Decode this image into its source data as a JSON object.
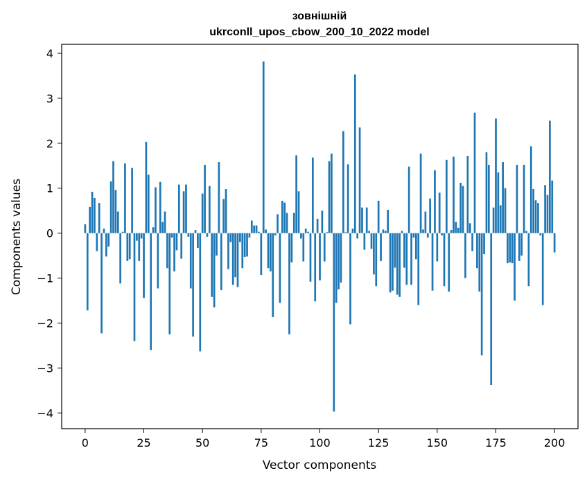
{
  "chart_data": {
    "type": "bar",
    "title_line1": "зовнішній",
    "title_line2": "ukrconll_upos_cbow_200_10_2022 model",
    "xlabel": "Vector components",
    "ylabel": "Components values",
    "xlim": [
      -10,
      210
    ],
    "ylim": [
      -4.35,
      4.2
    ],
    "xticks": [
      0,
      25,
      50,
      75,
      100,
      125,
      150,
      175,
      200
    ],
    "yticks": [
      -4,
      -3,
      -2,
      -1,
      0,
      1,
      2,
      3,
      4
    ],
    "xtick_labels": [
      "0",
      "25",
      "50",
      "75",
      "100",
      "125",
      "150",
      "175",
      "200"
    ],
    "ytick_labels": [
      "−4",
      "−3",
      "−2",
      "−1",
      "0",
      "1",
      "2",
      "3",
      "4"
    ],
    "bar_color": "#1f77b4",
    "grid": false,
    "values": [
      0.2,
      -1.72,
      0.58,
      0.92,
      0.78,
      -0.4,
      0.67,
      -2.23,
      0.1,
      -0.52,
      -0.3,
      1.15,
      1.6,
      0.96,
      0.48,
      -1.12,
      0.03,
      1.55,
      -0.62,
      -0.58,
      1.45,
      -2.4,
      -0.17,
      -0.62,
      -0.12,
      -1.44,
      2.03,
      1.3,
      -2.6,
      0.13,
      1.02,
      -1.23,
      1.14,
      0.25,
      0.48,
      -0.78,
      -2.25,
      -0.1,
      -0.85,
      -0.38,
      1.08,
      -0.57,
      0.93,
      1.08,
      -0.08,
      -1.23,
      -2.3,
      0.07,
      -0.33,
      -2.63,
      0.88,
      1.52,
      -0.08,
      1.05,
      -1.42,
      -1.65,
      -0.5,
      1.58,
      -1.27,
      0.76,
      0.98,
      -0.8,
      -0.2,
      -1.15,
      -0.98,
      -1.2,
      -0.2,
      -0.78,
      -0.53,
      -0.52,
      -0.1,
      0.28,
      0.17,
      0.17,
      0.03,
      -0.93,
      3.82,
      0.08,
      -0.78,
      -0.85,
      -1.87,
      -0.05,
      0.42,
      -1.55,
      0.72,
      0.68,
      0.45,
      -2.25,
      -0.65,
      0.45,
      1.73,
      0.93,
      -0.12,
      -0.63,
      0.1,
      0.03,
      -1.08,
      1.68,
      -1.52,
      0.32,
      -1.05,
      0.5,
      -0.63,
      0.02,
      1.6,
      1.77,
      -3.97,
      -1.55,
      -1.25,
      -1.1,
      2.27,
      0.02,
      1.53,
      -2.03,
      0.1,
      3.53,
      -0.12,
      2.35,
      0.57,
      -0.37,
      0.57,
      0.05,
      -0.35,
      -0.92,
      -1.18,
      0.72,
      -0.62,
      0.08,
      0.05,
      0.52,
      -1.32,
      -1.28,
      -0.77,
      -1.37,
      -1.42,
      0.05,
      -0.77,
      -1.15,
      1.48,
      -1.15,
      -0.1,
      -0.58,
      -1.6,
      1.77,
      0.08,
      0.48,
      -0.1,
      0.77,
      -1.28,
      1.4,
      -0.63,
      0.9,
      -0.05,
      -1.18,
      1.63,
      -1.3,
      0.07,
      1.7,
      0.25,
      0.12,
      1.12,
      1.05,
      -1.0,
      1.72,
      0.22,
      -0.4,
      2.68,
      -0.78,
      -1.3,
      -2.72,
      -0.47,
      1.8,
      1.52,
      -3.38,
      0.57,
      2.55,
      1.35,
      0.62,
      1.58,
      1.0,
      -0.67,
      -0.65,
      -0.67,
      -1.5,
      1.52,
      -0.62,
      -0.5,
      1.52,
      0.05,
      -1.18,
      1.93,
      0.98,
      0.73,
      0.67,
      -0.05,
      -1.6,
      1.07,
      0.85,
      2.5,
      1.17,
      -0.43
    ]
  }
}
